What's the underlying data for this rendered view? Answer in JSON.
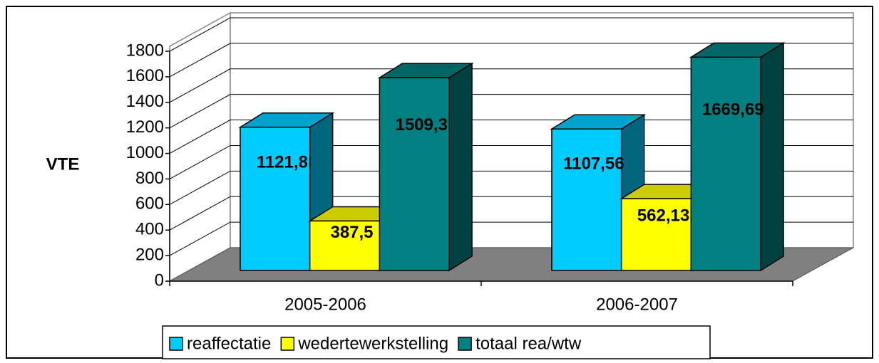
{
  "chart_data": {
    "type": "bar3d",
    "y_label": "VTE",
    "categories": [
      "2005-2006",
      "2006-2007"
    ],
    "series": [
      {
        "name": "reaffectatie",
        "color": "#00ccff",
        "values": [
          1121.8,
          1107.56
        ],
        "value_labels": [
          "1121,8",
          "1107,56"
        ]
      },
      {
        "name": "wedertewerkstelling",
        "color": "#ffff00",
        "values": [
          387.5,
          562.13
        ],
        "value_labels": [
          "387,5",
          "562,13"
        ]
      },
      {
        "name": "totaal rea/wtw",
        "color": "#008080",
        "values": [
          1509.3,
          1669.69
        ],
        "value_labels": [
          "1509,3",
          "1669,69"
        ]
      }
    ],
    "ylim": [
      0,
      1800
    ],
    "yticks": [
      0,
      200,
      400,
      600,
      800,
      1000,
      1200,
      1400,
      1600,
      1800
    ],
    "grid": true,
    "legend": "bottom"
  }
}
